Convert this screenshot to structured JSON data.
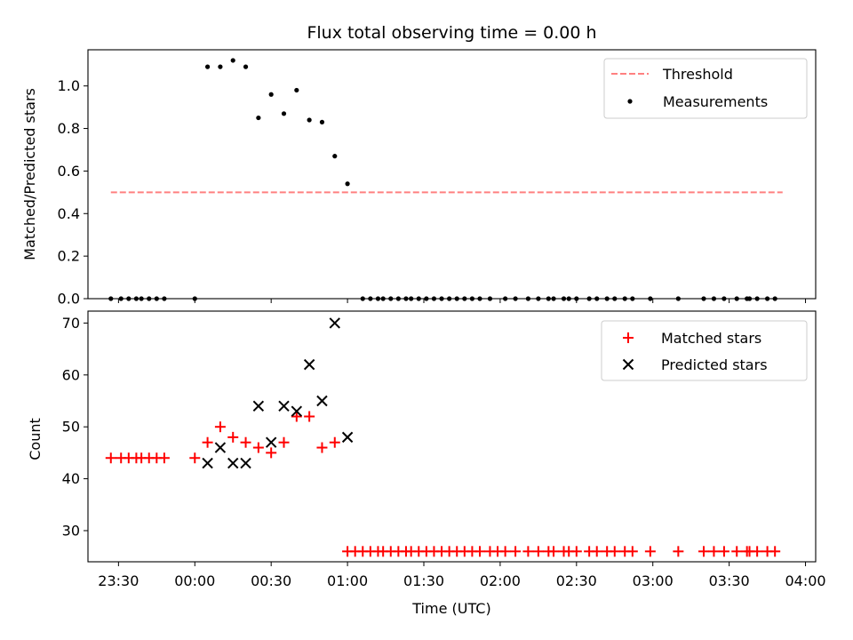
{
  "chart_data": [
    {
      "type": "scatter",
      "title": "Flux total observing time = 0.00 h",
      "xlabel": "",
      "ylabel": "Matched/Predicted stars",
      "xlim": [
        "23:18",
        "04:04"
      ],
      "ylim": [
        0,
        1.17
      ],
      "yticks": [
        0.0,
        0.2,
        0.4,
        0.6,
        0.8,
        1.0
      ],
      "ytick_labels": [
        "0.0",
        "0.2",
        "0.4",
        "0.6",
        "0.8",
        "1.0"
      ],
      "xticks": [
        "23:30",
        "00:00",
        "00:30",
        "01:00",
        "01:30",
        "02:00",
        "02:30",
        "03:00",
        "03:30",
        "04:00"
      ],
      "legend_position": "top-right",
      "colors": {
        "threshold": "#ff8080",
        "measurements": "#000000"
      },
      "threshold": {
        "name": "Threshold",
        "x_start": "23:27",
        "x_end": "03:51",
        "y": 0.5
      },
      "series": [
        {
          "name": "Measurements",
          "x": [
            "23:27",
            "23:31",
            "23:34",
            "23:37",
            "23:39",
            "23:42",
            "23:45",
            "23:48",
            "00:00",
            "00:05",
            "00:10",
            "00:15",
            "00:20",
            "00:25",
            "00:30",
            "00:35",
            "00:40",
            "00:45",
            "00:50",
            "00:55",
            "01:00",
            "01:06",
            "01:09",
            "01:12",
            "01:14",
            "01:17",
            "01:20",
            "01:23",
            "01:25",
            "01:28",
            "01:31",
            "01:34",
            "01:37",
            "01:40",
            "01:43",
            "01:46",
            "01:49",
            "01:52",
            "01:56",
            "02:02",
            "02:06",
            "02:11",
            "02:15",
            "02:19",
            "02:21",
            "02:25",
            "02:27",
            "02:30",
            "02:35",
            "02:38",
            "02:42",
            "02:45",
            "02:49",
            "02:52",
            "02:59",
            "03:10",
            "03:20",
            "03:24",
            "03:28",
            "03:33",
            "03:37",
            "03:38",
            "03:41",
            "03:45",
            "03:48"
          ],
          "y": [
            0,
            0,
            0,
            0,
            0,
            0,
            0,
            0,
            0,
            1.09,
            1.09,
            1.12,
            1.09,
            0.85,
            0.96,
            0.87,
            0.98,
            0.84,
            0.83,
            0.67,
            0.54,
            0,
            0,
            0,
            0,
            0,
            0,
            0,
            0,
            0,
            0,
            0,
            0,
            0,
            0,
            0,
            0,
            0,
            0,
            0,
            0,
            0,
            0,
            0,
            0,
            0,
            0,
            0,
            0,
            0,
            0,
            0,
            0,
            0,
            0,
            0,
            0,
            0,
            0,
            0,
            0,
            0,
            0,
            0,
            0
          ]
        }
      ]
    },
    {
      "type": "scatter",
      "title": "",
      "xlabel": "Time (UTC)",
      "ylabel": "Count",
      "xlim": [
        "23:18",
        "04:04"
      ],
      "ylim": [
        24,
        72.3
      ],
      "yticks": [
        30,
        40,
        50,
        60,
        70
      ],
      "ytick_labels": [
        "30",
        "40",
        "50",
        "60",
        "70"
      ],
      "xticks": [
        "23:30",
        "00:00",
        "00:30",
        "01:00",
        "01:30",
        "02:00",
        "02:30",
        "03:00",
        "03:30",
        "04:00"
      ],
      "legend_position": "top-right",
      "colors": {
        "matched": "#ff0000",
        "predicted": "#000000"
      },
      "series": [
        {
          "name": "Matched stars",
          "marker": "+",
          "x": [
            "23:27",
            "23:31",
            "23:34",
            "23:37",
            "23:39",
            "23:42",
            "23:45",
            "23:48",
            "00:00",
            "00:05",
            "00:10",
            "00:15",
            "00:20",
            "00:25",
            "00:30",
            "00:35",
            "00:40",
            "00:45",
            "00:50",
            "00:55",
            "01:00",
            "01:03",
            "01:06",
            "01:09",
            "01:12",
            "01:14",
            "01:17",
            "01:20",
            "01:23",
            "01:25",
            "01:28",
            "01:31",
            "01:34",
            "01:37",
            "01:40",
            "01:43",
            "01:46",
            "01:49",
            "01:52",
            "01:56",
            "01:59",
            "02:02",
            "02:06",
            "02:11",
            "02:15",
            "02:19",
            "02:21",
            "02:25",
            "02:27",
            "02:30",
            "02:35",
            "02:38",
            "02:42",
            "02:45",
            "02:49",
            "02:52",
            "02:59",
            "03:10",
            "03:20",
            "03:24",
            "03:28",
            "03:33",
            "03:37",
            "03:38",
            "03:41",
            "03:45",
            "03:48"
          ],
          "y": [
            44,
            44,
            44,
            44,
            44,
            44,
            44,
            44,
            44,
            47,
            50,
            48,
            47,
            46,
            45,
            47,
            52,
            52,
            46,
            47,
            26,
            26,
            26,
            26,
            26,
            26,
            26,
            26,
            26,
            26,
            26,
            26,
            26,
            26,
            26,
            26,
            26,
            26,
            26,
            26,
            26,
            26,
            26,
            26,
            26,
            26,
            26,
            26,
            26,
            26,
            26,
            26,
            26,
            26,
            26,
            26,
            26,
            26,
            26,
            26,
            26,
            26,
            26,
            26,
            26,
            26,
            26
          ]
        },
        {
          "name": "Predicted stars",
          "marker": "x",
          "x": [
            "00:05",
            "00:10",
            "00:15",
            "00:20",
            "00:25",
            "00:30",
            "00:35",
            "00:40",
            "00:45",
            "00:50",
            "00:55",
            "01:00"
          ],
          "y": [
            43,
            46,
            43,
            43,
            54,
            47,
            54,
            53,
            62,
            55,
            70,
            48
          ]
        }
      ]
    }
  ]
}
